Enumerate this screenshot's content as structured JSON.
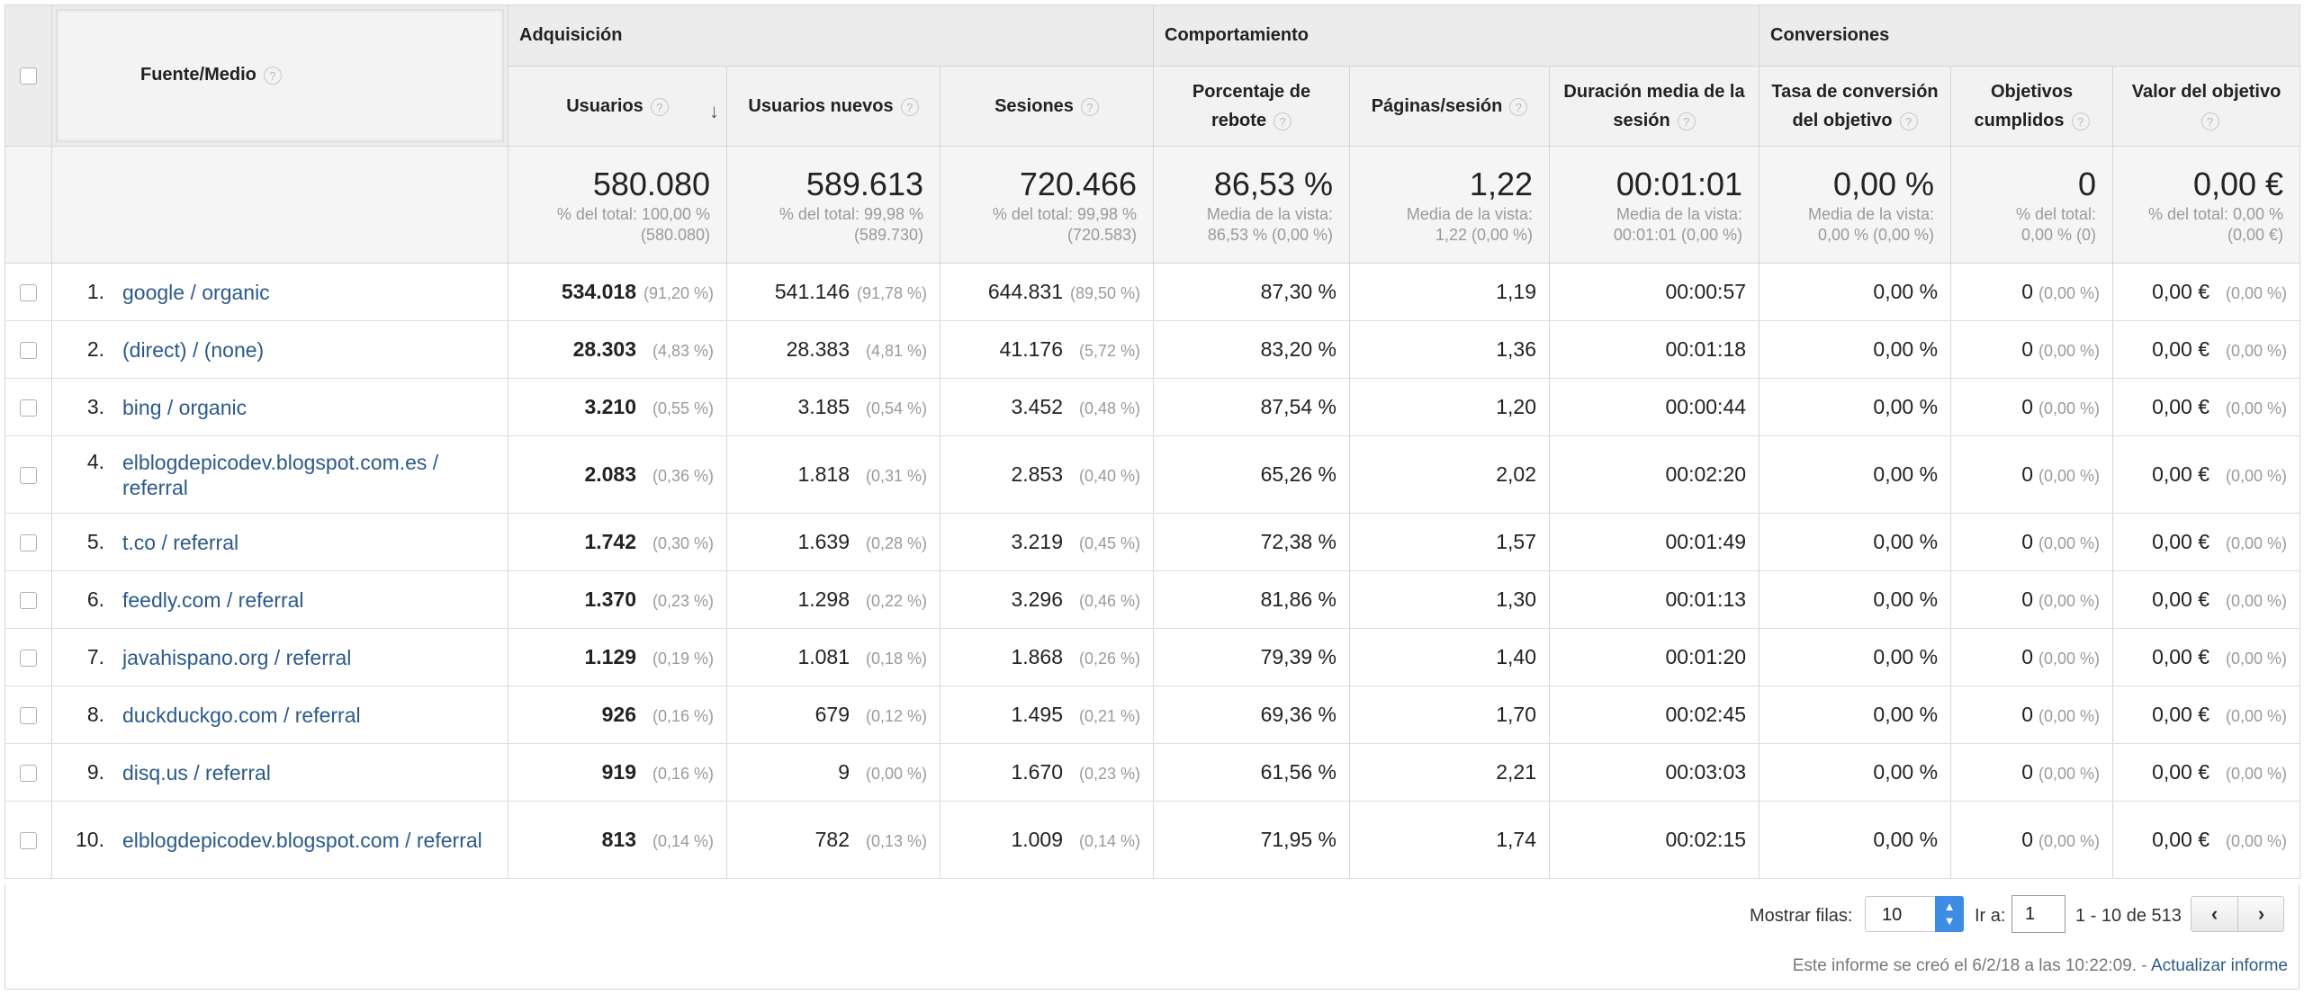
{
  "header": {
    "source_label": "Fuente/Medio",
    "groups": [
      "Adquisición",
      "Comportamiento",
      "Conversiones"
    ],
    "columns": [
      "Usuarios",
      "Usuarios nuevos",
      "Sesiones",
      "Porcentaje de rebote",
      "Páginas/sesión",
      "Duración media de la sesión",
      "Tasa de conversión del objetivo",
      "Objetivos cumplidos",
      "Valor del objetivo"
    ],
    "help_glyph": "?",
    "sort_glyph": "↓"
  },
  "totals": [
    {
      "value": "580.080",
      "line1": "% del total: 100,00 %",
      "line2": "(580.080)"
    },
    {
      "value": "589.613",
      "line1": "% del total: 99,98 %",
      "line2": "(589.730)"
    },
    {
      "value": "720.466",
      "line1": "% del total: 99,98 %",
      "line2": "(720.583)"
    },
    {
      "value": "86,53 %",
      "line1": "Media de la vista:",
      "line2": "86,53 % (0,00 %)"
    },
    {
      "value": "1,22",
      "line1": "Media de la vista:",
      "line2": "1,22 (0,00 %)"
    },
    {
      "value": "00:01:01",
      "line1": "Media de la vista:",
      "line2": "00:01:01 (0,00 %)"
    },
    {
      "value": "0,00 %",
      "line1": "Media de la vista:",
      "line2": "0,00 % (0,00 %)"
    },
    {
      "value": "0",
      "line1": "% del total:",
      "line2": "0,00 % (0)"
    },
    {
      "value": "0,00 €",
      "line1": "% del total: 0,00 %",
      "line2": "(0,00 €)"
    }
  ],
  "rows": [
    {
      "num": "1.",
      "source": "google / organic",
      "users": "534.018",
      "users_pct": "(91,20 %)",
      "new_users": "541.146",
      "new_users_pct": "(91,78 %)",
      "sessions": "644.831",
      "sessions_pct": "(89,50 %)",
      "bounce": "87,30 %",
      "pages": "1,19",
      "duration": "00:00:57",
      "conv_rate": "0,00 %",
      "goals": "0",
      "goals_pct": "(0,00 %)",
      "value": "0,00 €",
      "value_pct": "(0,00 %)"
    },
    {
      "num": "2.",
      "source": "(direct) / (none)",
      "users": "28.303",
      "users_pct": "(4,83 %)",
      "new_users": "28.383",
      "new_users_pct": "(4,81 %)",
      "sessions": "41.176",
      "sessions_pct": "(5,72 %)",
      "bounce": "83,20 %",
      "pages": "1,36",
      "duration": "00:01:18",
      "conv_rate": "0,00 %",
      "goals": "0",
      "goals_pct": "(0,00 %)",
      "value": "0,00 €",
      "value_pct": "(0,00 %)"
    },
    {
      "num": "3.",
      "source": "bing / organic",
      "users": "3.210",
      "users_pct": "(0,55 %)",
      "new_users": "3.185",
      "new_users_pct": "(0,54 %)",
      "sessions": "3.452",
      "sessions_pct": "(0,48 %)",
      "bounce": "87,54 %",
      "pages": "1,20",
      "duration": "00:00:44",
      "conv_rate": "0,00 %",
      "goals": "0",
      "goals_pct": "(0,00 %)",
      "value": "0,00 €",
      "value_pct": "(0,00 %)"
    },
    {
      "num": "4.",
      "source": "elblogdepicodev.blogspot.com.es / referral",
      "users": "2.083",
      "users_pct": "(0,36 %)",
      "new_users": "1.818",
      "new_users_pct": "(0,31 %)",
      "sessions": "2.853",
      "sessions_pct": "(0,40 %)",
      "bounce": "65,26 %",
      "pages": "2,02",
      "duration": "00:02:20",
      "conv_rate": "0,00 %",
      "goals": "0",
      "goals_pct": "(0,00 %)",
      "value": "0,00 €",
      "value_pct": "(0,00 %)"
    },
    {
      "num": "5.",
      "source": "t.co / referral",
      "users": "1.742",
      "users_pct": "(0,30 %)",
      "new_users": "1.639",
      "new_users_pct": "(0,28 %)",
      "sessions": "3.219",
      "sessions_pct": "(0,45 %)",
      "bounce": "72,38 %",
      "pages": "1,57",
      "duration": "00:01:49",
      "conv_rate": "0,00 %",
      "goals": "0",
      "goals_pct": "(0,00 %)",
      "value": "0,00 €",
      "value_pct": "(0,00 %)"
    },
    {
      "num": "6.",
      "source": "feedly.com / referral",
      "users": "1.370",
      "users_pct": "(0,23 %)",
      "new_users": "1.298",
      "new_users_pct": "(0,22 %)",
      "sessions": "3.296",
      "sessions_pct": "(0,46 %)",
      "bounce": "81,86 %",
      "pages": "1,30",
      "duration": "00:01:13",
      "conv_rate": "0,00 %",
      "goals": "0",
      "goals_pct": "(0,00 %)",
      "value": "0,00 €",
      "value_pct": "(0,00 %)"
    },
    {
      "num": "7.",
      "source": "javahispano.org / referral",
      "users": "1.129",
      "users_pct": "(0,19 %)",
      "new_users": "1.081",
      "new_users_pct": "(0,18 %)",
      "sessions": "1.868",
      "sessions_pct": "(0,26 %)",
      "bounce": "79,39 %",
      "pages": "1,40",
      "duration": "00:01:20",
      "conv_rate": "0,00 %",
      "goals": "0",
      "goals_pct": "(0,00 %)",
      "value": "0,00 €",
      "value_pct": "(0,00 %)"
    },
    {
      "num": "8.",
      "source": "duckduckgo.com / referral",
      "users": "926",
      "users_pct": "(0,16 %)",
      "new_users": "679",
      "new_users_pct": "(0,12 %)",
      "sessions": "1.495",
      "sessions_pct": "(0,21 %)",
      "bounce": "69,36 %",
      "pages": "1,70",
      "duration": "00:02:45",
      "conv_rate": "0,00 %",
      "goals": "0",
      "goals_pct": "(0,00 %)",
      "value": "0,00 €",
      "value_pct": "(0,00 %)"
    },
    {
      "num": "9.",
      "source": "disq.us / referral",
      "users": "919",
      "users_pct": "(0,16 %)",
      "new_users": "9",
      "new_users_pct": "(0,00 %)",
      "sessions": "1.670",
      "sessions_pct": "(0,23 %)",
      "bounce": "61,56 %",
      "pages": "2,21",
      "duration": "00:03:03",
      "conv_rate": "0,00 %",
      "goals": "0",
      "goals_pct": "(0,00 %)",
      "value": "0,00 €",
      "value_pct": "(0,00 %)"
    },
    {
      "num": "10.",
      "source": "elblogdepicodev.blogspot.com / referral",
      "users": "813",
      "users_pct": "(0,14 %)",
      "new_users": "782",
      "new_users_pct": "(0,13 %)",
      "sessions": "1.009",
      "sessions_pct": "(0,14 %)",
      "bounce": "71,95 %",
      "pages": "1,74",
      "duration": "00:02:15",
      "conv_rate": "0,00 %",
      "goals": "0",
      "goals_pct": "(0,00 %)",
      "value": "0,00 €",
      "value_pct": "(0,00 %)"
    }
  ],
  "footer": {
    "rows_label": "Mostrar filas:",
    "rows_value": "10",
    "goto_label": "Ir a:",
    "goto_value": "1",
    "range_label": "1 - 10 de 513",
    "prev_glyph": "‹",
    "next_glyph": "›",
    "report_text": "Este informe se creó el 6/2/18 a las 10:22:09. - ",
    "refresh_link": "Actualizar informe"
  },
  "colors": {
    "link": "#2b5a8a",
    "header_bg": "#ececec",
    "select_accent": "#3d8ce5"
  }
}
